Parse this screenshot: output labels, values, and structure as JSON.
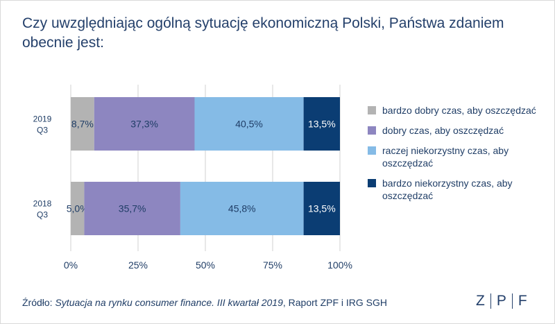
{
  "title": "Czy uwzględniając ogólną sytuację ekonomiczną Polski, Państwa zdaniem obecnie jest:",
  "source": {
    "prefix": "Źródło: ",
    "italic": "Sytuacja na rynku consumer finance. III kwartał 2019",
    "suffix": ", Raport ZPF i IRG SGH"
  },
  "logo": {
    "letters": [
      "Z",
      "P",
      "F"
    ]
  },
  "chart_data": {
    "type": "bar",
    "orientation": "horizontal",
    "stacked": true,
    "categories": [
      "2019\nQ3",
      "2018\nQ3"
    ],
    "series": [
      {
        "name": "bardzo dobry czas, aby oszczędzać",
        "values": [
          8.7,
          5.0
        ],
        "labels": [
          "8,7%",
          "5,0%"
        ],
        "color": "#b3b3b3"
      },
      {
        "name": "dobry czas, aby oszczędzać",
        "values": [
          37.3,
          35.7
        ],
        "labels": [
          "37,3%",
          "35,7%"
        ],
        "color": "#8d86c0"
      },
      {
        "name": "raczej niekorzystny czas, aby oszczędzać",
        "values": [
          40.5,
          45.8
        ],
        "labels": [
          "40,5%",
          "45,8%"
        ],
        "color": "#85bbe6"
      },
      {
        "name": "bardzo niekorzystny czas, aby oszczędzać",
        "values": [
          13.5,
          13.5
        ],
        "labels": [
          "13,5%",
          "13,5%"
        ],
        "color": "#0b3d73"
      }
    ],
    "xlim": [
      0,
      100
    ],
    "xticks": [
      "0%",
      "25%",
      "50%",
      "75%",
      "100%"
    ],
    "grid": true,
    "legend_position": "right",
    "label_colors": [
      "#1f3d66",
      "#1f3d66",
      "#1f3d66",
      "#ffffff"
    ]
  }
}
